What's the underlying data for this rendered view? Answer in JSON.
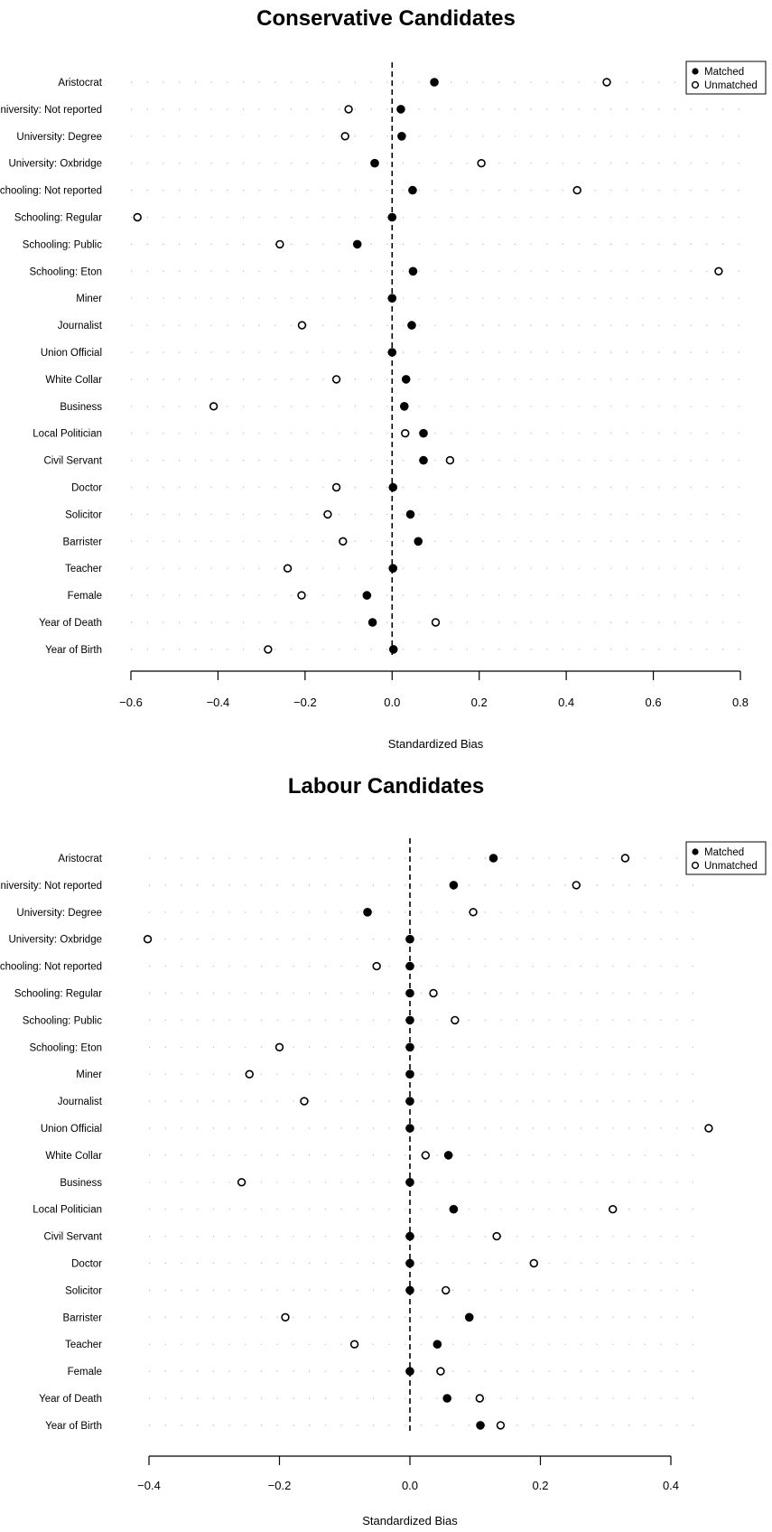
{
  "legend": {
    "matched": "Matched",
    "unmatched": "Unmatched"
  },
  "chart_data": [
    {
      "type": "scatter",
      "title": "Conservative Candidates",
      "xlabel": "Standardized Bias",
      "xlim": [
        -0.6,
        0.8
      ],
      "xticks": [
        "−0.6",
        "−0.4",
        "−0.2",
        "0.0",
        "0.2",
        "0.4",
        "0.6",
        "0.8"
      ],
      "legend_position": "top-right",
      "categories": [
        "Aristocrat",
        "University: Not reported",
        "University: Degree",
        "University: Oxbridge",
        "Schooling: Not reported",
        "Schooling: Regular",
        "Schooling: Public",
        "Schooling: Eton",
        "Miner",
        "Journalist",
        "Union Official",
        "White Collar",
        "Business",
        "Local Politician",
        "Civil Servant",
        "Doctor",
        "Solicitor",
        "Barrister",
        "Teacher",
        "Female",
        "Year of Death",
        "Year of Birth"
      ],
      "series": [
        {
          "name": "Matched",
          "marker": "filled",
          "values": [
            0.097,
            0.02,
            0.022,
            -0.04,
            0.047,
            0.0,
            -0.08,
            0.048,
            0.0,
            0.045,
            0.0,
            0.032,
            0.028,
            0.072,
            0.072,
            0.002,
            0.042,
            0.06,
            0.002,
            -0.058,
            -0.045,
            0.003
          ]
        },
        {
          "name": "Unmatched",
          "marker": "open",
          "values": [
            0.493,
            -0.1,
            -0.108,
            0.205,
            0.425,
            -0.585,
            -0.258,
            0.75,
            null,
            -0.207,
            null,
            -0.128,
            -0.41,
            0.03,
            0.133,
            -0.128,
            -0.148,
            -0.113,
            -0.24,
            -0.208,
            0.1,
            -0.285
          ]
        }
      ]
    },
    {
      "type": "scatter",
      "title": "Labour Candidates",
      "xlabel": "Standardized Bias",
      "xlim": [
        -0.4,
        0.4
      ],
      "xticks": [
        "−0.4",
        "−0.2",
        "0.0",
        "0.2",
        "0.4"
      ],
      "legend_position": "top-right",
      "categories": [
        "Aristocrat",
        "University: Not reported",
        "University: Degree",
        "University: Oxbridge",
        "Schooling: Not reported",
        "Schooling: Regular",
        "Schooling: Public",
        "Schooling: Eton",
        "Miner",
        "Journalist",
        "Union Official",
        "White Collar",
        "Business",
        "Local Politician",
        "Civil Servant",
        "Doctor",
        "Solicitor",
        "Barrister",
        "Teacher",
        "Female",
        "Year of Death",
        "Year of Birth"
      ],
      "series": [
        {
          "name": "Matched",
          "marker": "filled",
          "values": [
            0.128,
            0.067,
            -0.065,
            0.0,
            0.0,
            0.0,
            0.0,
            0.0,
            0.0,
            0.0,
            0.0,
            0.059,
            0.0,
            0.067,
            0.0,
            0.0,
            0.0,
            0.091,
            0.042,
            0.0,
            0.057,
            0.108
          ]
        },
        {
          "name": "Unmatched",
          "marker": "open",
          "values": [
            0.33,
            0.255,
            0.097,
            -0.402,
            -0.051,
            0.036,
            0.069,
            -0.2,
            -0.246,
            -0.162,
            0.458,
            0.024,
            -0.258,
            0.311,
            0.133,
            0.19,
            0.055,
            -0.191,
            -0.085,
            0.047,
            0.107,
            0.139
          ]
        }
      ]
    }
  ]
}
